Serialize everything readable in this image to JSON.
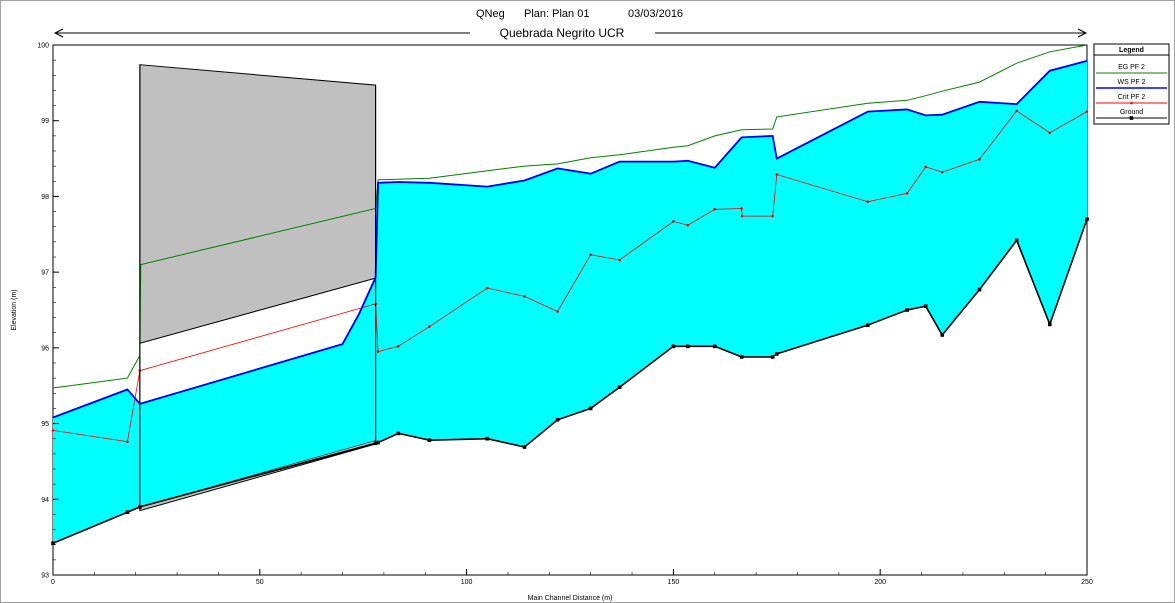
{
  "header": {
    "project": "QNeg",
    "plan": "Plan: Plan 01",
    "date": "03/03/2016"
  },
  "reach_label": "Quebrada Negrito UCR",
  "chart_data": {
    "type": "line",
    "xlabel": "Main Channel Distance (m)",
    "ylabel": "Elevation (m)",
    "xlim": [
      0,
      250
    ],
    "ylim": [
      93,
      100
    ],
    "xticks": [
      0,
      50,
      100,
      150,
      200,
      250
    ],
    "yticks": [
      93,
      94,
      95,
      96,
      97,
      98,
      99,
      100
    ],
    "legend": {
      "title": "Legend",
      "position": "right",
      "entries": [
        {
          "name": "EG PF 2",
          "color": "#008000",
          "marker": "none"
        },
        {
          "name": "WS PF 2",
          "color": "#0000ff",
          "marker": "none"
        },
        {
          "name": "Crit PF 2",
          "color": "#ff0000",
          "marker": "dot"
        },
        {
          "name": "Ground",
          "color": "#000000",
          "marker": "square"
        }
      ]
    },
    "colors": {
      "water_fill": "#00ffff",
      "structure_fill": "#c0c0c0",
      "eg": "#008000",
      "ws": "#0000ff",
      "crit": "#ff0000",
      "ground": "#000000"
    },
    "series": [
      {
        "name": "Ground",
        "x": [
          0,
          18,
          21,
          78,
          78.6,
          83.5,
          91,
          105,
          114,
          122,
          130,
          137,
          150,
          153.5,
          160,
          166.5,
          174,
          175,
          197,
          206.5,
          211,
          215,
          224,
          233,
          241,
          250
        ],
        "y": [
          93.42,
          93.83,
          93.9,
          94.74,
          94.75,
          94.87,
          94.78,
          94.8,
          94.69,
          95.05,
          95.2,
          95.48,
          96.02,
          96.02,
          96.02,
          95.88,
          95.88,
          95.92,
          96.3,
          96.5,
          96.55,
          96.17,
          96.77,
          97.42,
          96.31,
          97.7
        ]
      },
      {
        "name": "WS PF 2",
        "x": [
          0,
          18,
          21,
          70,
          74,
          78,
          78.6,
          83.5,
          91,
          105,
          114,
          122,
          130,
          137,
          150,
          153.5,
          160,
          166.5,
          174,
          175,
          197,
          206.5,
          211,
          215,
          224,
          233,
          241,
          250
        ],
        "y": [
          95.08,
          95.45,
          95.26,
          96.05,
          96.45,
          96.93,
          98.18,
          98.19,
          98.18,
          98.13,
          98.21,
          98.37,
          98.3,
          98.46,
          98.46,
          98.47,
          98.38,
          98.78,
          98.8,
          98.5,
          99.12,
          99.15,
          99.07,
          99.08,
          99.25,
          99.22,
          99.66,
          99.79
        ]
      },
      {
        "name": "EG PF 2",
        "x": [
          0,
          18,
          21,
          21.2,
          78,
          78.6,
          91,
          105,
          114,
          122,
          130,
          137,
          150,
          153.5,
          160,
          166.5,
          174,
          175,
          197,
          206.5,
          211,
          215,
          224,
          233,
          241,
          250
        ],
        "y": [
          95.47,
          95.6,
          95.9,
          97.1,
          97.84,
          98.22,
          98.24,
          98.34,
          98.4,
          98.43,
          98.51,
          98.55,
          98.65,
          98.67,
          98.8,
          98.88,
          98.89,
          99.05,
          99.23,
          99.27,
          99.33,
          99.39,
          99.51,
          99.76,
          99.91,
          100.0
        ]
      },
      {
        "name": "Crit PF 2",
        "x": [
          0,
          18,
          21,
          78,
          78.6,
          83.5,
          91,
          105,
          114,
          122,
          130,
          137,
          150,
          153.5,
          160,
          166.5,
          166.6,
          174,
          175,
          197,
          206.5,
          211,
          215,
          224,
          233,
          241,
          250
        ],
        "y": [
          94.91,
          94.76,
          95.7,
          96.58,
          95.95,
          96.02,
          96.28,
          96.79,
          96.68,
          96.48,
          97.23,
          97.16,
          97.67,
          97.62,
          97.83,
          97.84,
          97.74,
          97.74,
          98.29,
          97.93,
          98.04,
          98.39,
          98.32,
          98.49,
          99.13,
          98.84,
          99.12
        ]
      }
    ],
    "structure": {
      "type": "culvert",
      "x_start": 21,
      "x_end": 78,
      "top_upstream": 99.74,
      "top_downstream": 99.47,
      "soffit_upstream": 96.06,
      "soffit_downstream": 96.92,
      "invert_upstream": 93.9,
      "invert_downstream": 94.78
    }
  }
}
